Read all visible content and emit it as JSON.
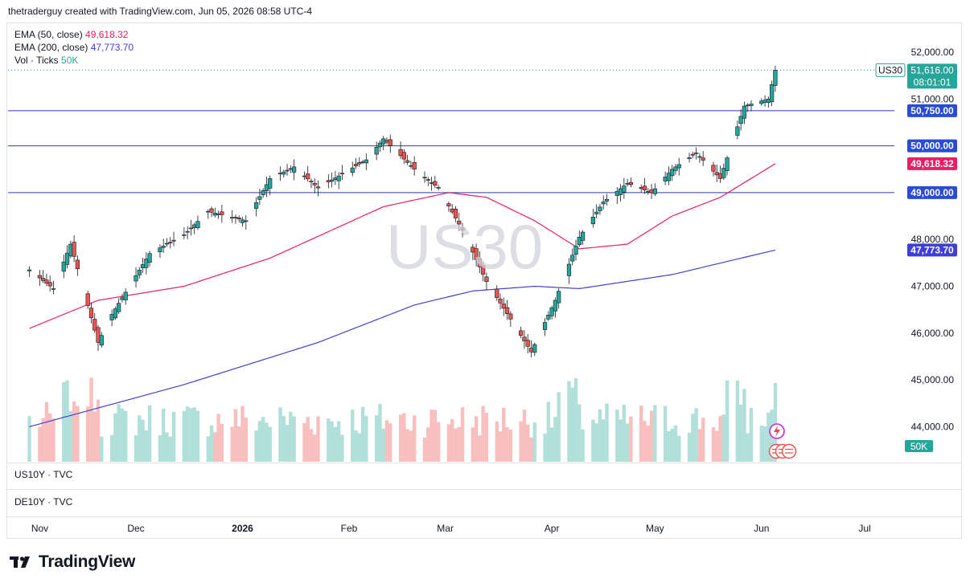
{
  "header": {
    "caption": "thetraderguy created with TradingView.com, Jun 05, 2026 08:58 UTC-4"
  },
  "watermark": "US30",
  "legend": {
    "ema50": {
      "label": "EMA (50, close)",
      "value": "49,618.32",
      "color": "#e91e63"
    },
    "ema200": {
      "label": "EMA (200, close)",
      "value": "47,773.70",
      "color": "#3f3fd6"
    },
    "vol": {
      "label": "Vol · Ticks",
      "value": "50K",
      "color": "#26a69a"
    }
  },
  "panes": {
    "us10y": "US10Y · TVC",
    "de10y": "DE10Y · TVC"
  },
  "symbol_tag": {
    "symbol": "US30",
    "price": "51,616.00",
    "countdown": "08:01:01"
  },
  "volume_tag": "50K",
  "brand": {
    "name": "TradingView"
  },
  "colors": {
    "up": "#26a69a",
    "down": "#ef5350",
    "up_vol": "#a8dcd5",
    "down_vol": "#f7b8b7",
    "hline": "#2a3bbf",
    "ema50": "#e91e63",
    "ema200": "#3f3fd6"
  },
  "chart_data": {
    "type": "candlestick",
    "symbol": "US30",
    "y_axis_ticks": [
      44000,
      45000,
      46000,
      47000,
      48000,
      49000,
      50000,
      51000,
      52000
    ],
    "y_axis_tick_labels": [
      "44,000.00",
      "45,000.00",
      "46,000.00",
      "47,000.00",
      "48,000.00",
      "49,000.00",
      "50,000.00",
      "51,000.00",
      "52,000.00"
    ],
    "x_axis_labels": [
      "Nov",
      "Dec",
      "2026",
      "Feb",
      "Mar",
      "Apr",
      "May",
      "Jun",
      "Jul"
    ],
    "horizontal_lines": [
      {
        "value": 50750,
        "label": "50,750.00"
      },
      {
        "value": 50000,
        "label": "50,000.00"
      },
      {
        "value": 49000,
        "label": "49,000.00"
      }
    ],
    "last_price": 51616,
    "ema_labels": [
      {
        "value": 49618.32,
        "label": "49,618.32"
      },
      {
        "value": 47773.7,
        "label": "47,773.70"
      }
    ],
    "close_anchors": [
      [
        "2025-10-31",
        47350
      ],
      [
        "2025-11-07",
        46950
      ],
      [
        "2025-11-12",
        47900
      ],
      [
        "2025-11-20",
        45800
      ],
      [
        "2025-11-24",
        46400
      ],
      [
        "2025-12-05",
        47700
      ],
      [
        "2025-12-15",
        48100
      ],
      [
        "2025-12-22",
        48600
      ],
      [
        "2026-01-02",
        48400
      ],
      [
        "2026-01-09",
        49300
      ],
      [
        "2026-01-16",
        49550
      ],
      [
        "2026-01-23",
        49100
      ],
      [
        "2026-01-30",
        49400
      ],
      [
        "2026-02-06",
        49700
      ],
      [
        "2026-02-11",
        50150
      ],
      [
        "2026-02-20",
        49500
      ],
      [
        "2026-02-27",
        49100
      ],
      [
        "2026-03-06",
        48200
      ],
      [
        "2026-03-13",
        47100
      ],
      [
        "2026-03-20",
        46300
      ],
      [
        "2026-03-26",
        45600
      ],
      [
        "2026-04-02",
        46700
      ],
      [
        "2026-04-09",
        48050
      ],
      [
        "2026-04-16",
        48800
      ],
      [
        "2026-04-23",
        49200
      ],
      [
        "2026-04-30",
        49000
      ],
      [
        "2026-05-06",
        49500
      ],
      [
        "2026-05-13",
        49850
      ],
      [
        "2026-05-20",
        49300
      ],
      [
        "2026-05-27",
        50850
      ],
      [
        "2026-06-03",
        51000
      ],
      [
        "2026-06-05",
        51616
      ]
    ],
    "ema50_anchors": [
      [
        "2025-10-31",
        46100
      ],
      [
        "2025-11-20",
        46700
      ],
      [
        "2025-12-15",
        47000
      ],
      [
        "2026-01-09",
        47600
      ],
      [
        "2026-02-11",
        48700
      ],
      [
        "2026-03-02",
        49000
      ],
      [
        "2026-03-13",
        48900
      ],
      [
        "2026-03-27",
        48400
      ],
      [
        "2026-04-09",
        47800
      ],
      [
        "2026-04-23",
        47900
      ],
      [
        "2026-05-06",
        48500
      ],
      [
        "2026-05-20",
        48900
      ],
      [
        "2026-06-05",
        49618
      ]
    ],
    "ema200_anchors": [
      [
        "2025-10-31",
        44000
      ],
      [
        "2025-12-15",
        44900
      ],
      [
        "2026-01-23",
        45800
      ],
      [
        "2026-02-20",
        46600
      ],
      [
        "2026-03-09",
        46900
      ],
      [
        "2026-03-27",
        47000
      ],
      [
        "2026-04-09",
        46950
      ],
      [
        "2026-05-06",
        47250
      ],
      [
        "2026-06-05",
        47774
      ]
    ]
  }
}
